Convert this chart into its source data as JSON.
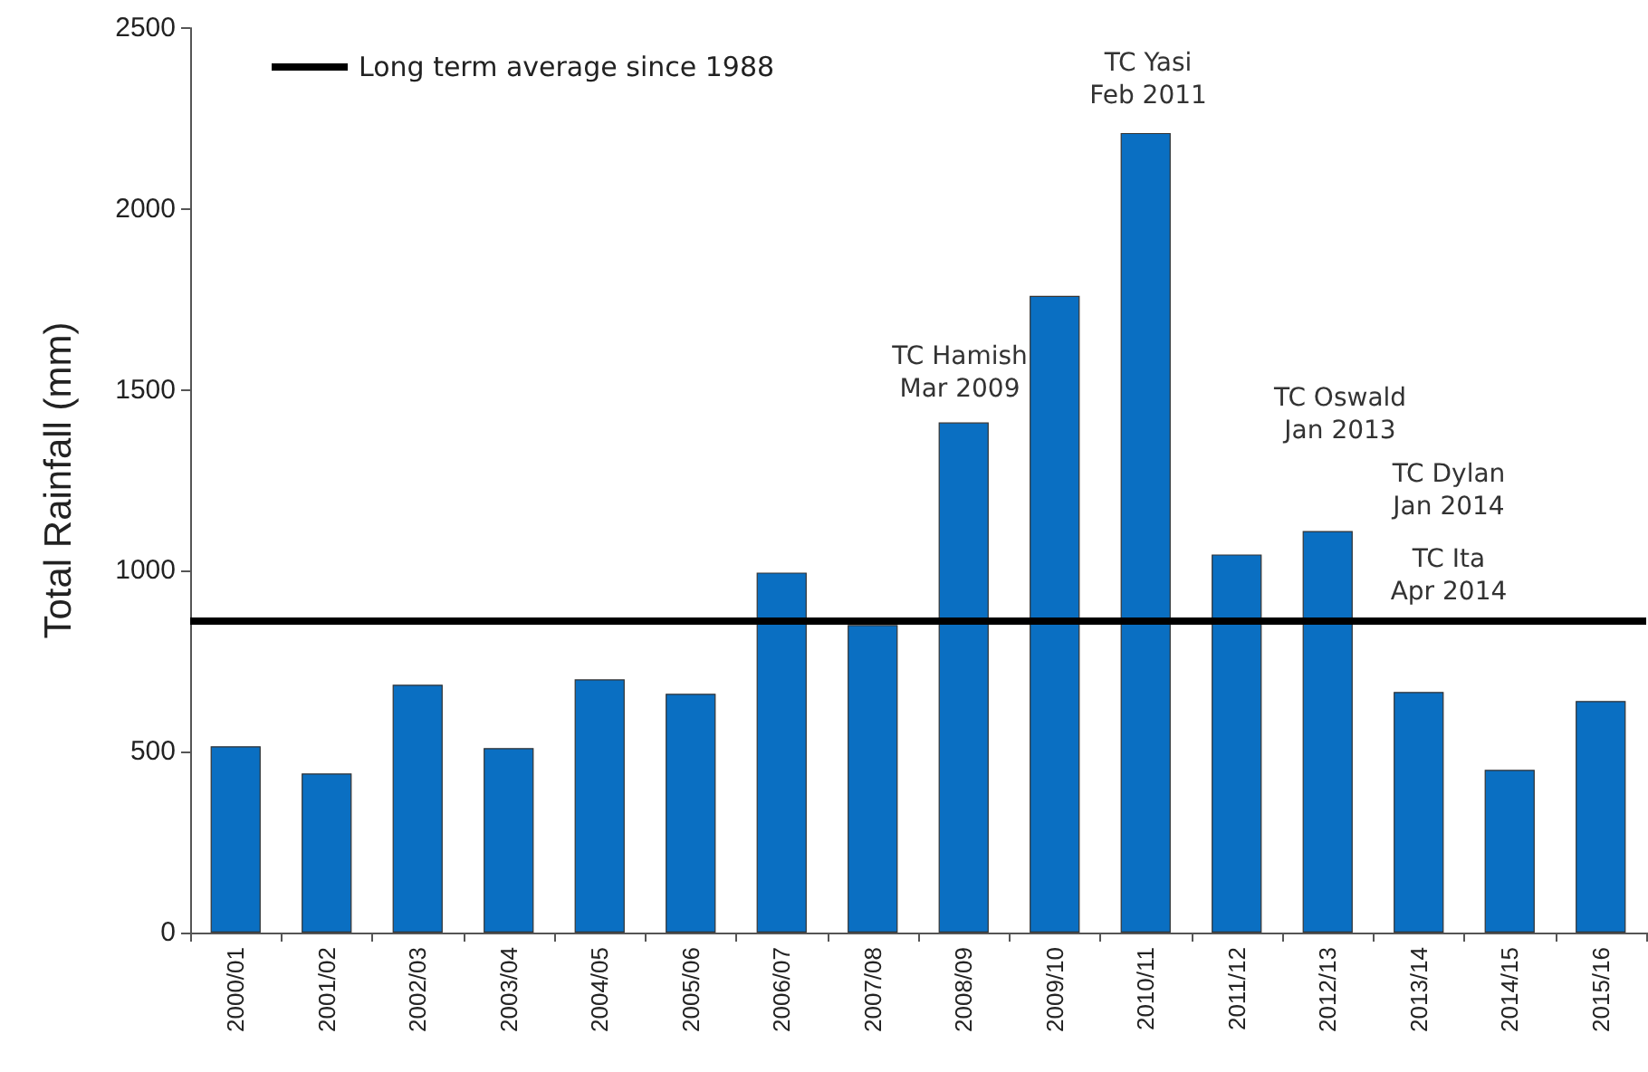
{
  "chart_data": {
    "type": "bar",
    "ylabel": "Total Rainfall (mm)",
    "categories": [
      "2000/01",
      "2001/02",
      "2002/03",
      "2003/04",
      "2004/05",
      "2005/06",
      "2006/07",
      "2007/08",
      "2008/09",
      "2009/10",
      "2010/11",
      "2011/12",
      "2012/13",
      "2013/14",
      "2014/15",
      "2015/16"
    ],
    "values": [
      515,
      440,
      685,
      510,
      700,
      660,
      995,
      850,
      1410,
      1760,
      2210,
      1045,
      1110,
      665,
      450,
      640
    ],
    "color": "#0a6fc2",
    "ylim": [
      0,
      2500
    ],
    "yticks": [
      0,
      500,
      1000,
      1500,
      2000,
      2500
    ],
    "grid": false,
    "legend": "top left",
    "ref_lines": [
      {
        "axis": "y",
        "value": 860,
        "label": "Long term average since 1988",
        "color": "#000000",
        "line_style": "solid"
      }
    ],
    "annotations": [
      "TC Hamish\nMar 2009",
      "TC Yasi\nFeb 2011",
      "TC Oswald\nJan 2013",
      "TC Dylan\nJan 2014",
      "TC Ita\nApr 2014"
    ]
  }
}
